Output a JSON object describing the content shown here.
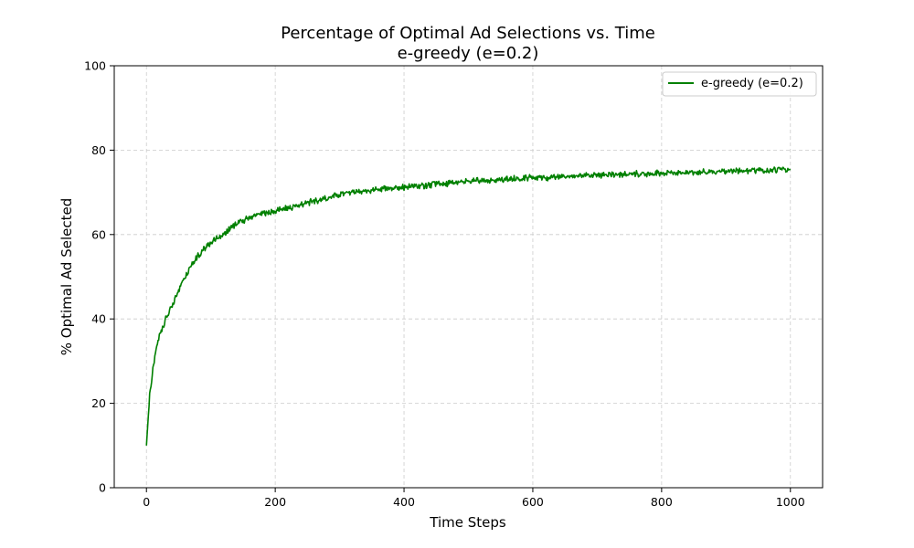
{
  "chart_data": {
    "type": "line",
    "title": "Percentage of Optimal Ad Selections vs. Time",
    "subtitle": "e-greedy (e=0.2)",
    "xlabel": "Time Steps",
    "ylabel": "% Optimal Ad Selected",
    "xlim": [
      -50,
      1050
    ],
    "ylim": [
      0,
      100
    ],
    "xticks": [
      0,
      200,
      400,
      600,
      800,
      1000
    ],
    "yticks": [
      0,
      20,
      40,
      60,
      80,
      100
    ],
    "grid": true,
    "legend_position": "top-right",
    "series": [
      {
        "name": "e-greedy (e=0.2)",
        "color": "#008000",
        "x": [
          0,
          5,
          10,
          15,
          20,
          25,
          30,
          40,
          50,
          60,
          70,
          80,
          90,
          100,
          120,
          140,
          160,
          180,
          200,
          225,
          250,
          275,
          300,
          325,
          350,
          375,
          400,
          425,
          450,
          475,
          500,
          525,
          550,
          575,
          600,
          625,
          650,
          675,
          700,
          725,
          750,
          775,
          800,
          825,
          850,
          875,
          900,
          925,
          950,
          975,
          1000
        ],
        "y": [
          10,
          22,
          28,
          33,
          36,
          38,
          40,
          43,
          47,
          50,
          53,
          55,
          56.5,
          58,
          60,
          62.5,
          64,
          65,
          65.5,
          66.5,
          67.5,
          68.5,
          69.5,
          70,
          70.5,
          71,
          71.2,
          71.5,
          72,
          72.2,
          72.5,
          72.8,
          73,
          73.2,
          73.5,
          73.5,
          73.7,
          74,
          74,
          74.2,
          74.3,
          74.5,
          74.5,
          74.6,
          74.7,
          74.8,
          75,
          75,
          75.2,
          75.3,
          75.5
        ]
      }
    ]
  }
}
